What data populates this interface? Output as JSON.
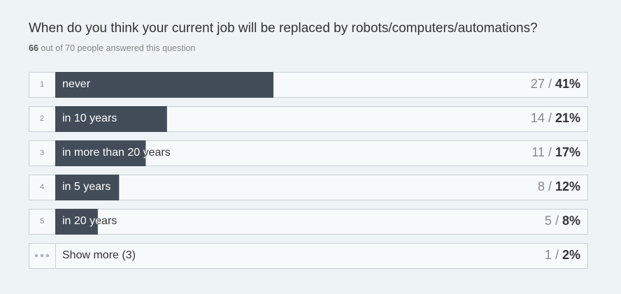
{
  "chart_data": {
    "type": "bar",
    "title": "When do you think your current job will be replaced by robots/computers/automations?",
    "answered": "66",
    "answered_text": "out of 70 people answered this question",
    "ranks": [
      "1",
      "2",
      "3",
      "4",
      "5"
    ],
    "categories": [
      "never",
      "in 10 years",
      "in more than 20 years",
      "in 5 years",
      "in 20 years"
    ],
    "counts": [
      27,
      14,
      11,
      8,
      5
    ],
    "values": [
      41,
      21,
      17,
      12,
      8
    ],
    "value_labels": [
      "41%",
      "21%",
      "17%",
      "12%",
      "8%"
    ],
    "separator": "/",
    "xlim": [
      0,
      100
    ],
    "color": "#434d59",
    "show_more": {
      "label": "Show more (3)",
      "count": 1,
      "percent_label": "2%"
    }
  }
}
